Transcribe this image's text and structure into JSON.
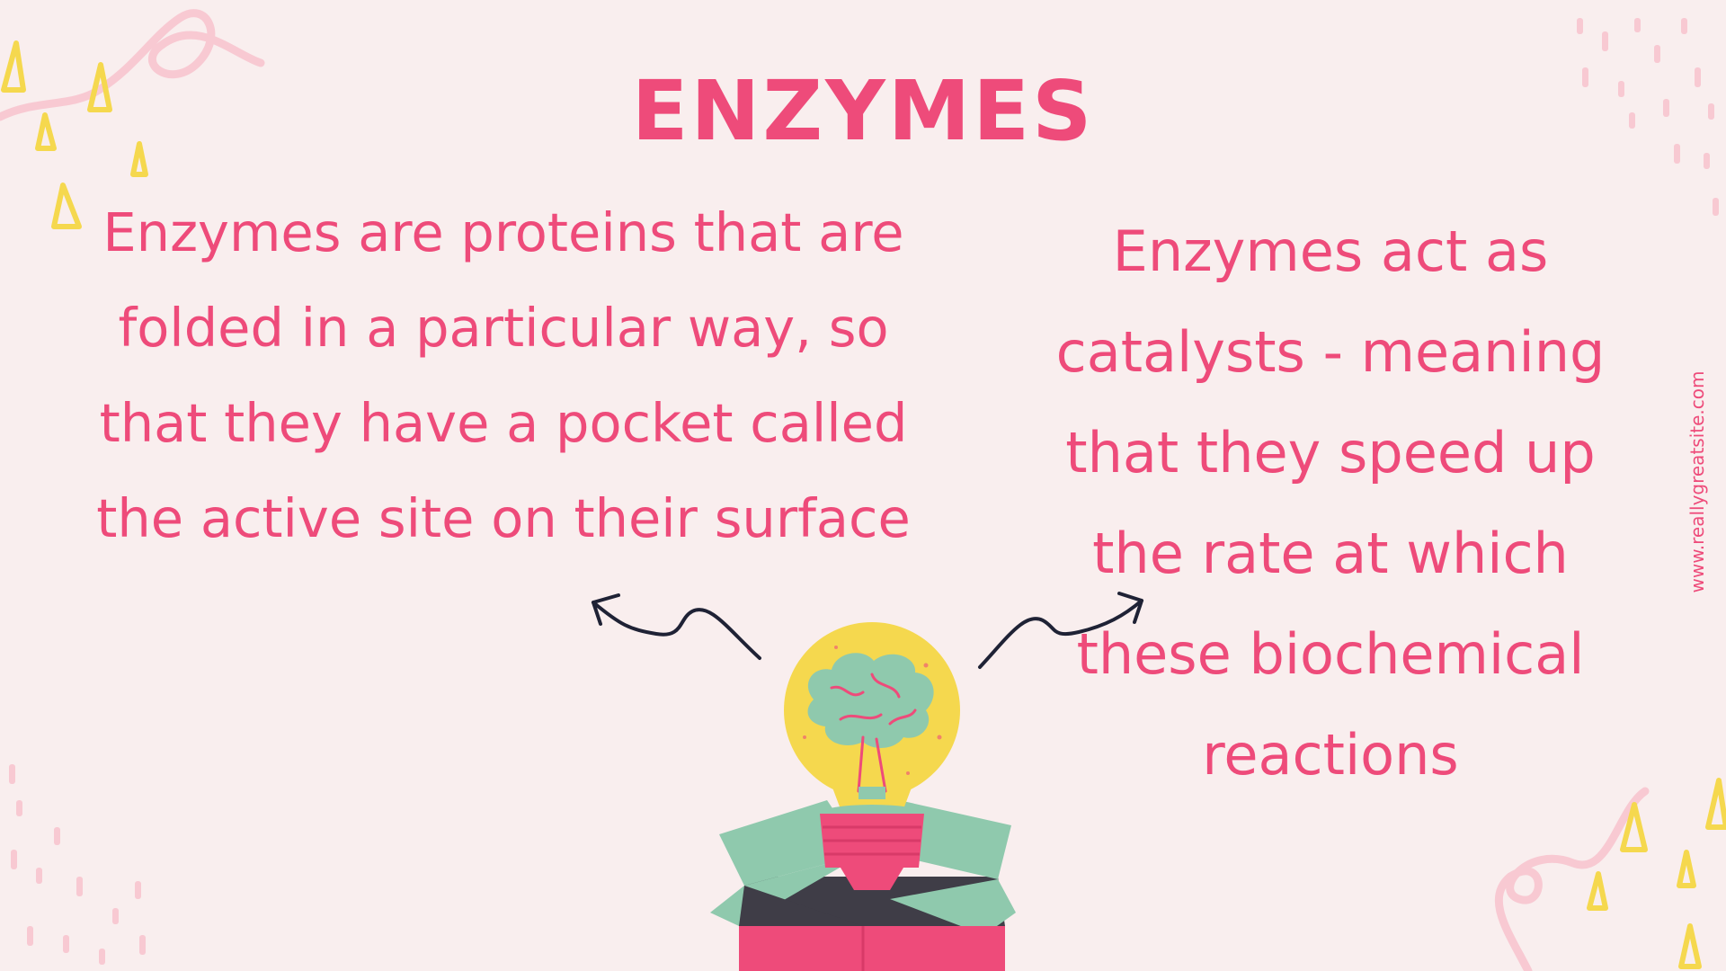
{
  "slide": {
    "title": "ENZYMES",
    "left_text": "Enzymes are proteins that are folded in a particular way, so that they have a pocket called the active site on their surface",
    "right_text": "Enzymes act as catalysts - meaning that they speed up the rate at which these biochemical reactions",
    "watermark": "www.reallygreatsite.com"
  },
  "colors": {
    "background": "#f9eeee",
    "accent_pink": "#ee4b7a",
    "light_pink": "#f8c9d2",
    "yellow": "#f5d84e",
    "mint": "#8fc9ad",
    "dark": "#3f3d47",
    "arrow": "#1f2235"
  },
  "icons": [
    "lightbulb-brain-illustration",
    "open-box-illustration",
    "left-arrow-icon",
    "right-arrow-icon"
  ]
}
